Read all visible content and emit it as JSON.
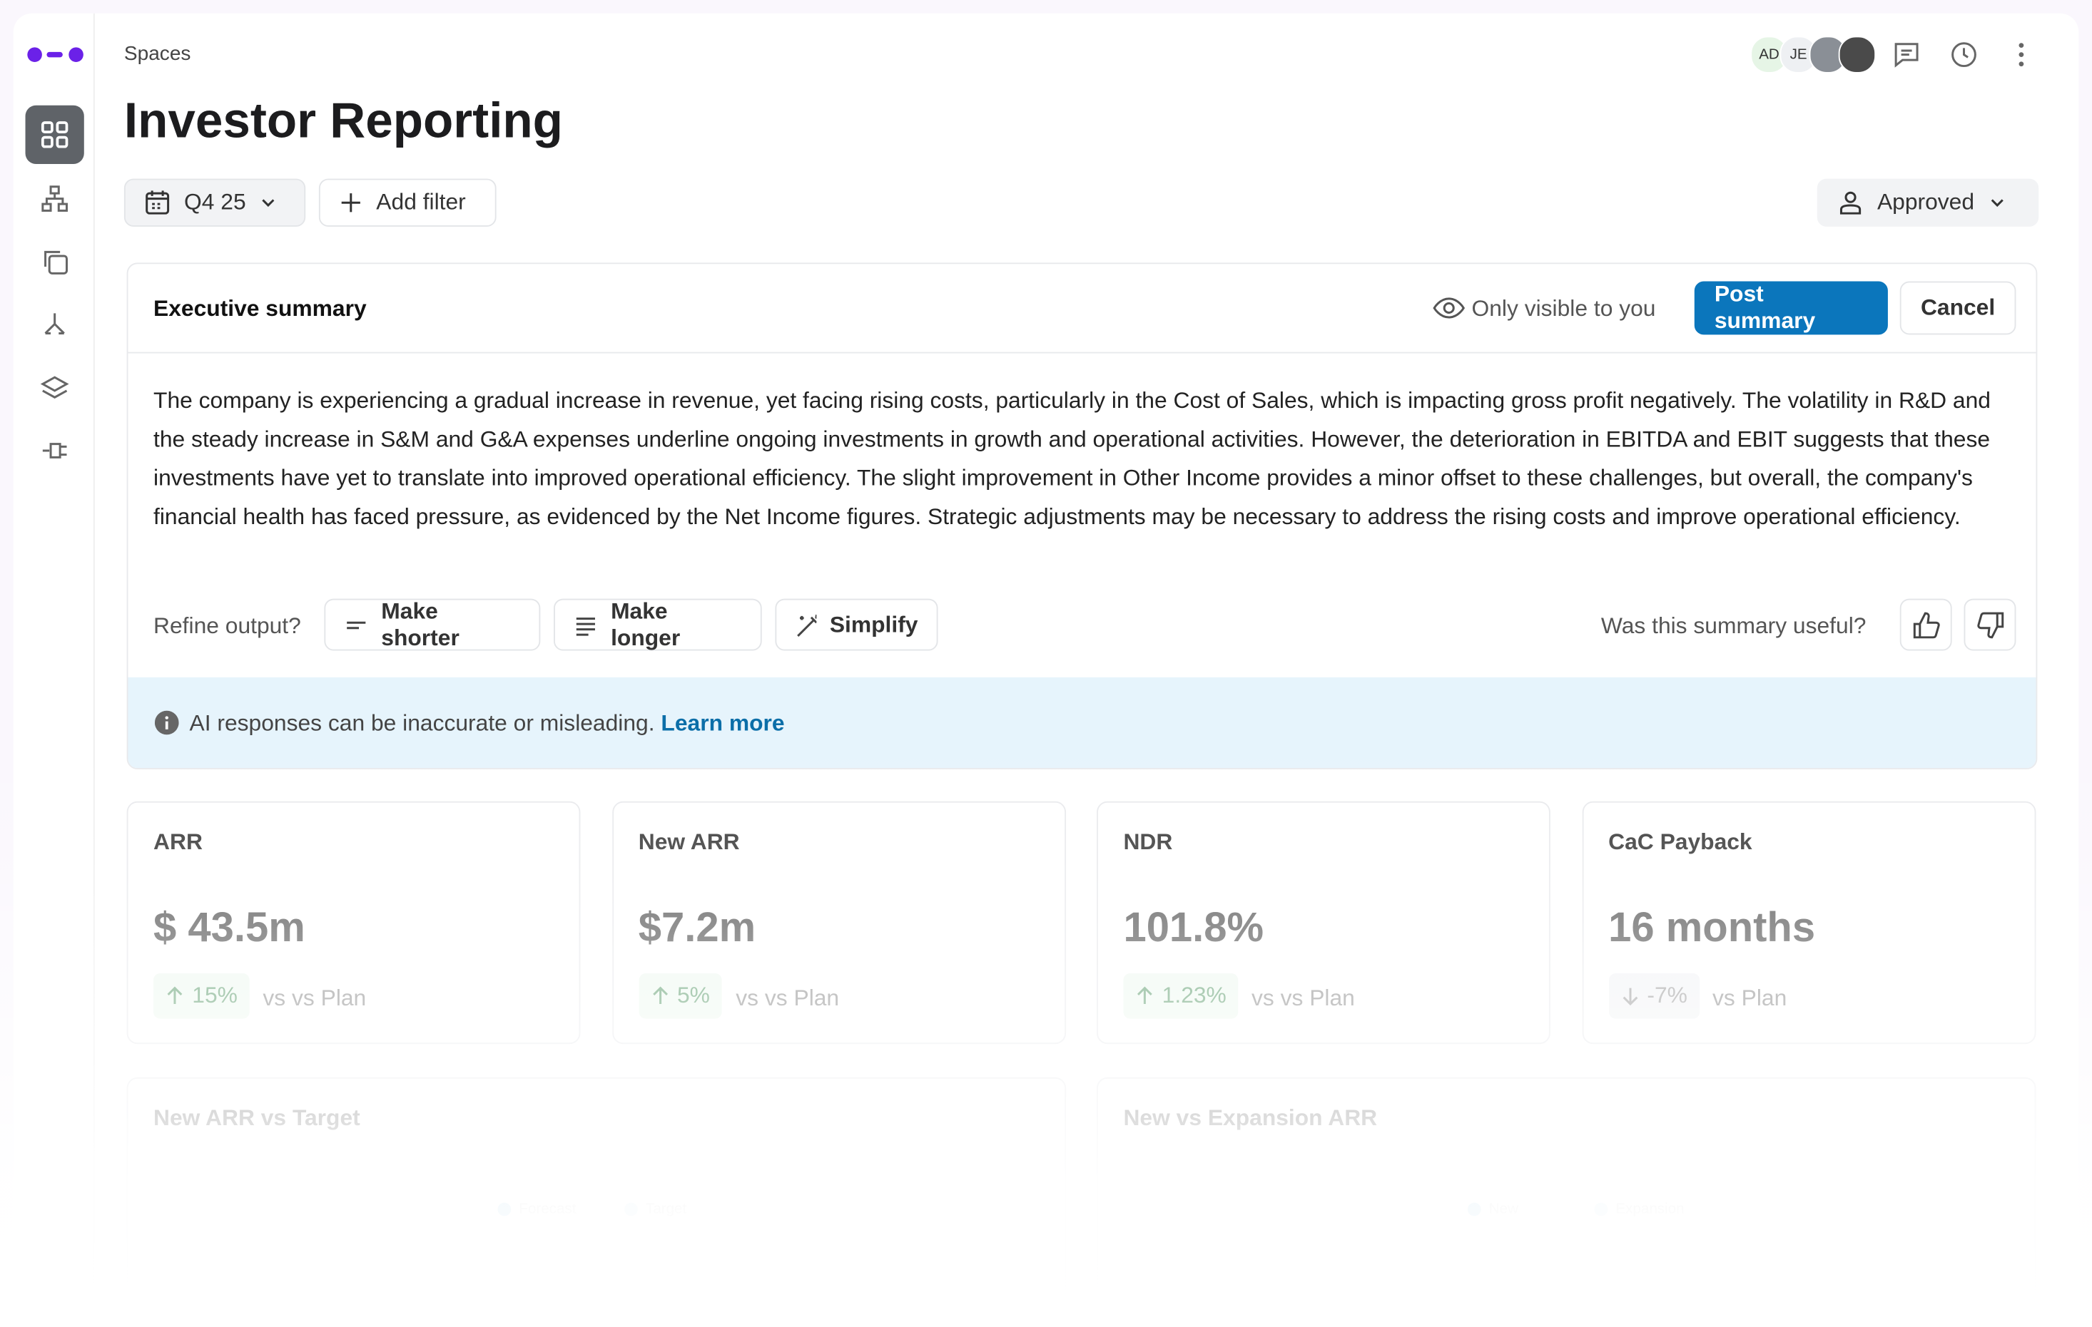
{
  "breadcrumb": "Spaces",
  "title": "Investor Reporting",
  "avatars": [
    "AD",
    "JE"
  ],
  "filters": {
    "period": "Q4 25",
    "add_filter": "Add filter",
    "status": "Approved"
  },
  "summary": {
    "title": "Executive summary",
    "visibility": "Only visible to you",
    "post": "Post summary",
    "cancel": "Cancel",
    "text": "The company is experiencing a gradual increase in revenue, yet facing rising costs, particularly in the Cost of Sales, which is impacting gross profit negatively. The volatility in R&D and the steady increase in S&M and G&A expenses underline ongoing investments in growth and operational activities. However, the deterioration in EBITDA and EBIT suggests that these investments have yet to translate into improved operational efficiency. The slight improvement in Other Income provides a minor offset to these challenges, but overall, the company's financial health has faced pressure, as evidenced by the Net Income figures. Strategic adjustments may be necessary to address the rising costs and improve operational efficiency.",
    "refine_label": "Refine output?",
    "refine_options": [
      "Make shorter",
      "Make longer",
      "Simplify"
    ],
    "feedback": "Was this summary useful?",
    "notice": "AI responses can be inaccurate or misleading.",
    "learn_more": "Learn more"
  },
  "kpis": [
    {
      "label": "ARR",
      "value": "$ 43.5m",
      "change": "15%",
      "comparison": "vs vs Plan",
      "direction": "up"
    },
    {
      "label": "New ARR",
      "value": "$7.2m",
      "change": "5%",
      "comparison": "vs vs Plan",
      "direction": "up"
    },
    {
      "label": "NDR",
      "value": "101.8%",
      "change": "1.23%",
      "comparison": "vs vs Plan",
      "direction": "up"
    },
    {
      "label": "CaC Payback",
      "value": "16 months",
      "change": "-7%",
      "comparison": "vs Plan",
      "direction": "down"
    }
  ],
  "charts": [
    {
      "title": "New ARR vs Target",
      "legend": [
        "Forecast",
        "Target"
      ]
    },
    {
      "title": "New vs Expansion ARR",
      "legend": [
        "New",
        "Expansion"
      ]
    }
  ]
}
